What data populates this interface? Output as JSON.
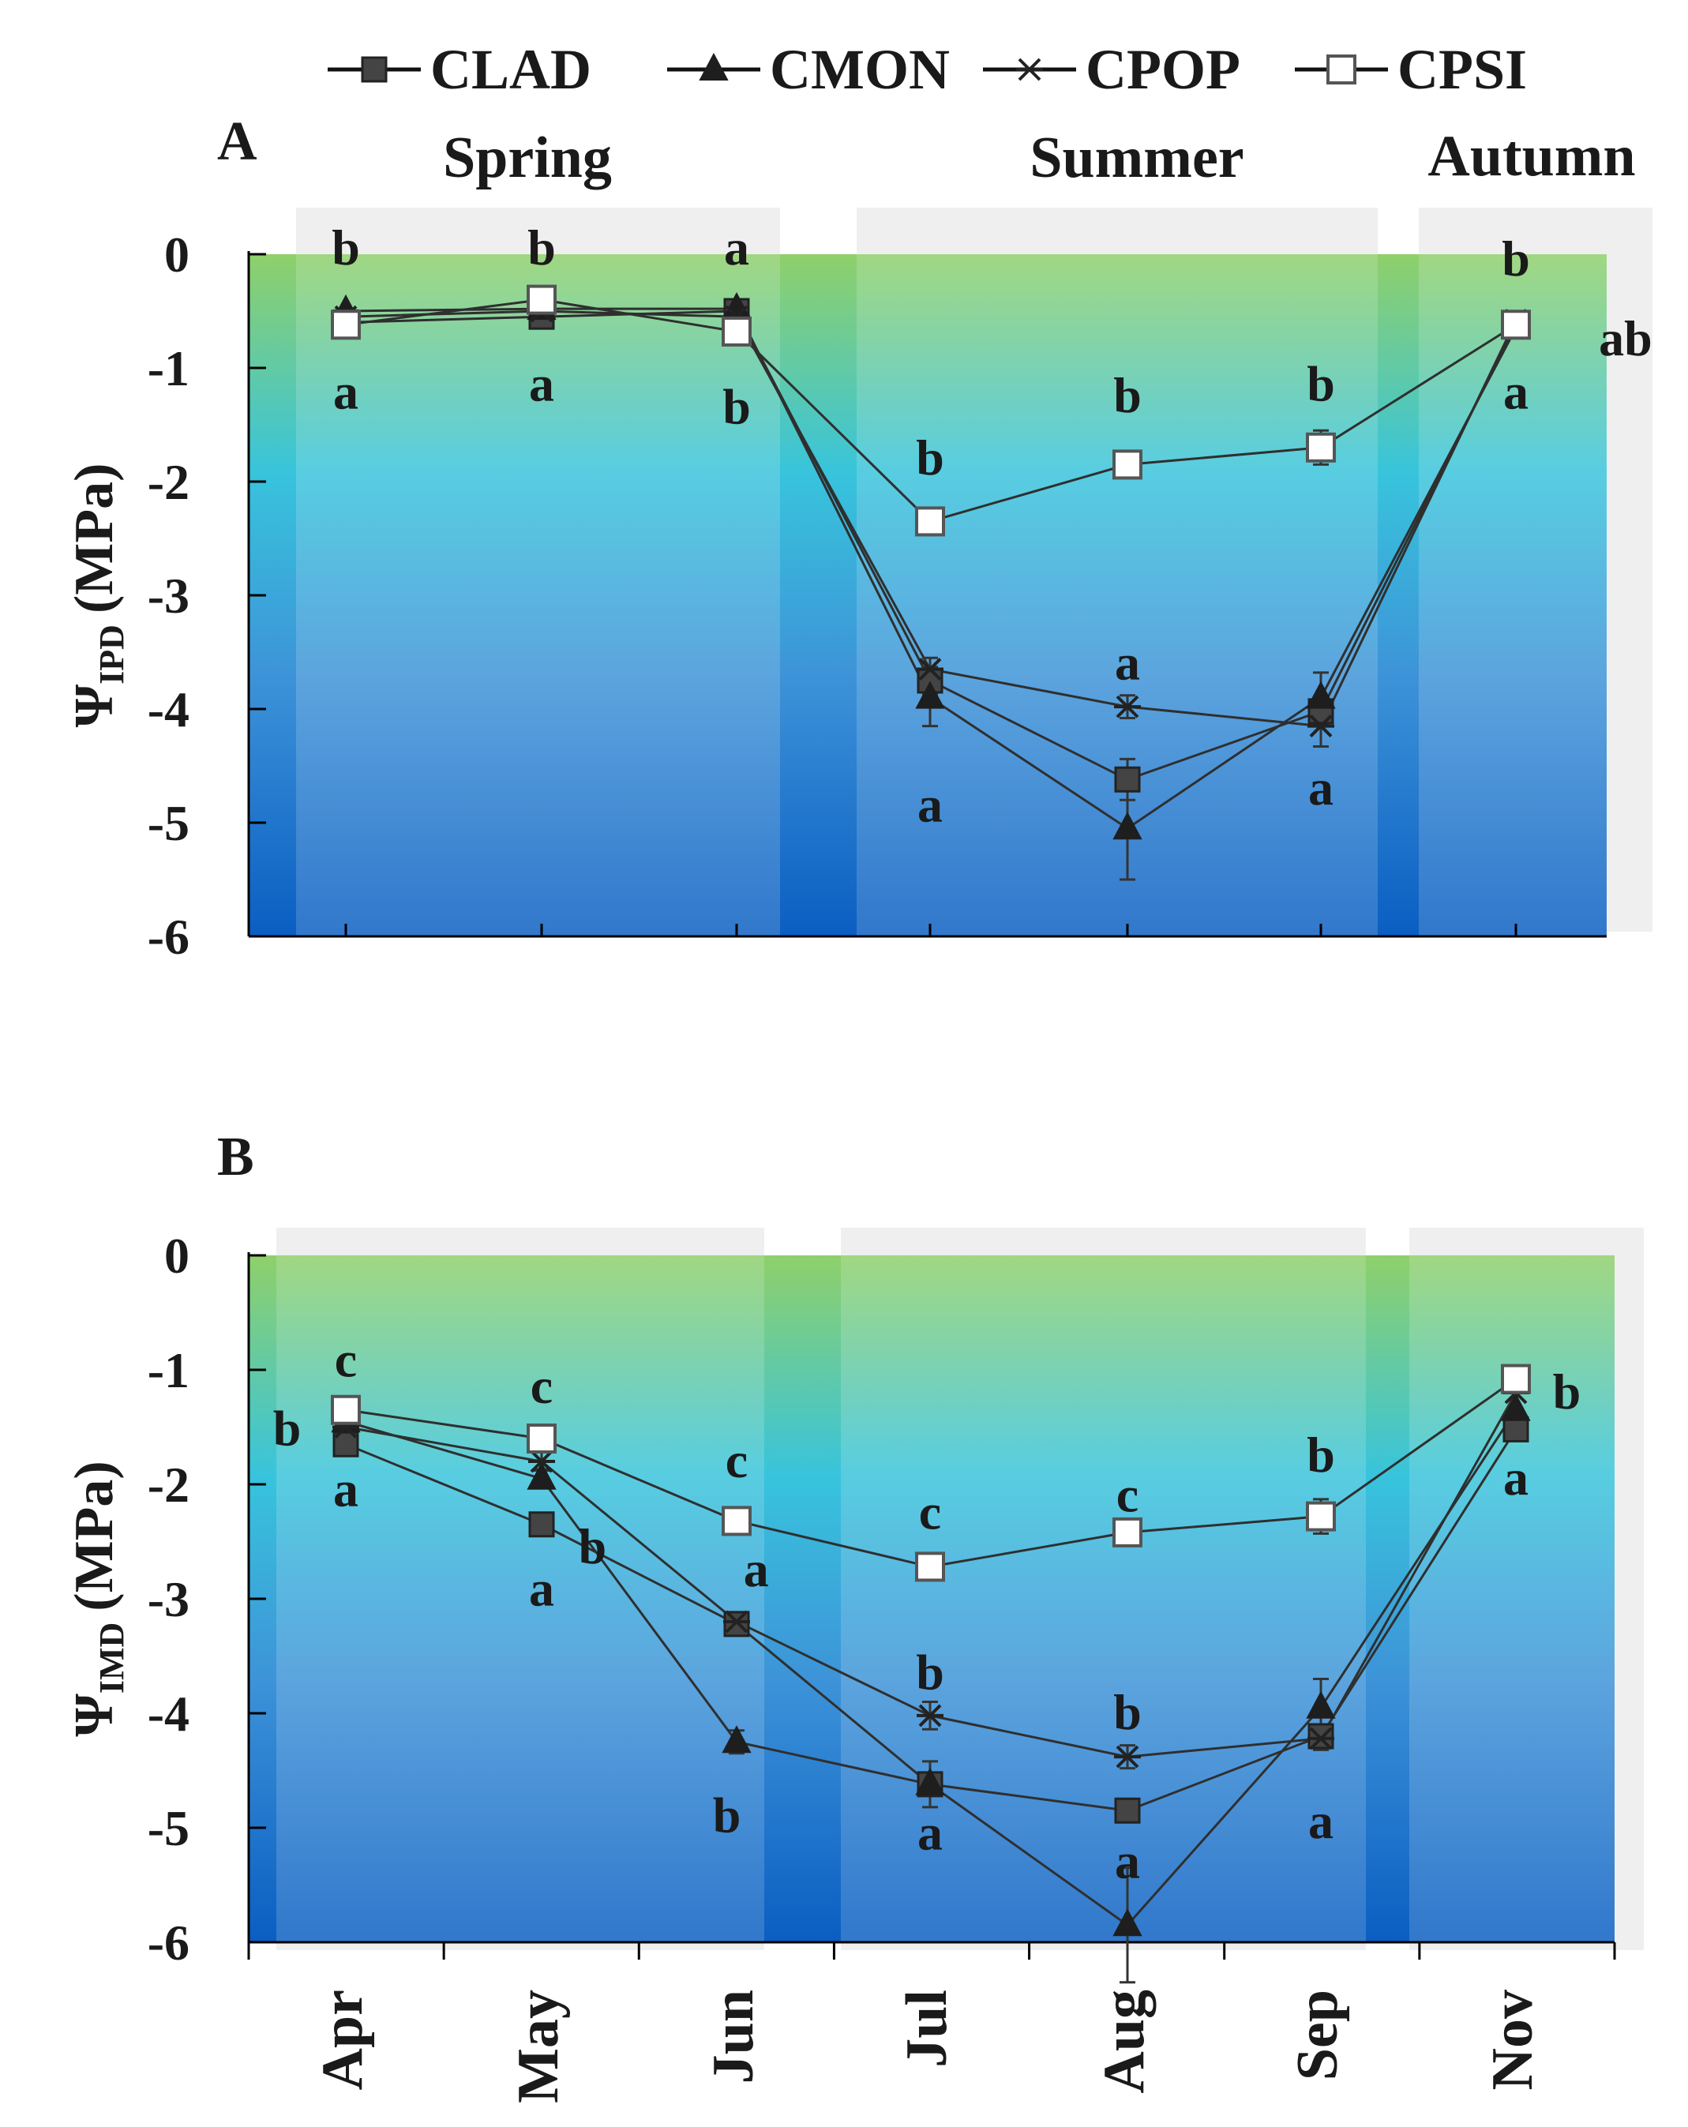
{
  "legend": {
    "position": "top",
    "entries": [
      {
        "name": "CLAD",
        "marker": "square-filled"
      },
      {
        "name": "CMON",
        "marker": "triangle-filled"
      },
      {
        "name": "CPOP",
        "marker": "asterisk"
      },
      {
        "name": "CPSI",
        "marker": "square-open"
      }
    ]
  },
  "colors": {
    "line": "#2f2f2f",
    "marker_fill": "#444444",
    "marker_open": "#ffffff",
    "season_shade": "#efefef",
    "gradient_top": "#8fd06a",
    "gradient_mid": "#38c4dc",
    "gradient_bottom": "#0a5ec2",
    "axis": "#000000"
  },
  "season_labels": [
    "Spring",
    "Summer",
    "Autumn"
  ],
  "chart_data": [
    {
      "type": "line",
      "panel_label": "A",
      "ylabel": "ΨIPD (MPa)",
      "ylabel_main": "Ψ",
      "ylabel_sub": "IPD",
      "ylabel_unit": "(MPa)",
      "ylim": [
        -6,
        0
      ],
      "yticks": [
        0,
        -1,
        -2,
        -3,
        -4,
        -5,
        -6
      ],
      "x": [
        "Apr",
        "May",
        "Jun",
        "Jul",
        "Aug",
        "Sep",
        "Nov"
      ],
      "grid": false,
      "series": [
        {
          "name": "CLAD",
          "values": [
            -0.6,
            -0.55,
            -0.5,
            -3.75,
            -4.62,
            -4.02,
            -0.62
          ],
          "err": [
            0.05,
            0.05,
            0.05,
            0.12,
            0.18,
            0.12,
            0.05
          ]
        },
        {
          "name": "CMON",
          "values": [
            -0.5,
            -0.48,
            -0.48,
            -3.9,
            -5.05,
            -3.9,
            -0.65
          ],
          "err": [
            0.05,
            0.05,
            0.05,
            0.25,
            0.45,
            0.22,
            0.05
          ]
        },
        {
          "name": "CPOP",
          "values": [
            -0.55,
            -0.5,
            -0.55,
            -3.65,
            -3.98,
            -4.15,
            -0.58
          ],
          "err": [
            0.05,
            0.05,
            0.05,
            0.1,
            0.1,
            0.18,
            0.05
          ]
        },
        {
          "name": "CPSI",
          "values": [
            -0.62,
            -0.4,
            -0.68,
            -2.35,
            -1.85,
            -1.7,
            -0.62
          ],
          "err": [
            0.05,
            0.05,
            0.05,
            0.12,
            0.08,
            0.15,
            0.05
          ]
        }
      ],
      "annotations": [
        {
          "text": "b",
          "month": "Apr",
          "y": 0.05
        },
        {
          "text": "a",
          "month": "Apr",
          "y": -1.22
        },
        {
          "text": "b",
          "month": "May",
          "y": 0.05
        },
        {
          "text": "a",
          "month": "May",
          "y": -1.15
        },
        {
          "text": "a",
          "month": "Jun",
          "y": 0.05
        },
        {
          "text": "b",
          "month": "Jun",
          "y": -1.35
        },
        {
          "text": "b",
          "month": "Jul",
          "y": -1.8
        },
        {
          "text": "a",
          "month": "Jul",
          "y": -4.85
        },
        {
          "text": "b",
          "month": "Aug",
          "y": -1.25
        },
        {
          "text": "a",
          "month": "Aug",
          "y": -3.6
        },
        {
          "text": "b",
          "month": "Sep",
          "y": -1.15
        },
        {
          "text": "a",
          "month": "Sep",
          "y": -4.7
        },
        {
          "text": "b",
          "month": "Nov",
          "y": -0.05
        },
        {
          "text": "a",
          "month": "Nov",
          "y": -1.22
        },
        {
          "text": "ab",
          "month": "Nov",
          "y": -0.75,
          "dx": 0.56
        }
      ]
    },
    {
      "type": "line",
      "panel_label": "B",
      "ylabel": "ΨIMD (MPa)",
      "ylabel_main": "Ψ",
      "ylabel_sub": "IMD",
      "ylabel_unit": "(MPa)",
      "ylim": [
        -6,
        0
      ],
      "yticks": [
        0,
        -1,
        -2,
        -3,
        -4,
        -5,
        -6
      ],
      "x": [
        "Apr",
        "May",
        "Jun",
        "Jul",
        "Aug",
        "Sep",
        "Nov"
      ],
      "grid": false,
      "series": [
        {
          "name": "CLAD",
          "values": [
            -1.65,
            -2.35,
            -3.22,
            -4.62,
            -4.85,
            -4.2,
            -1.52
          ],
          "err": [
            0.05,
            0.08,
            0.08,
            0.1,
            0.1,
            0.1,
            0.05
          ]
        },
        {
          "name": "CMON",
          "values": [
            -1.45,
            -1.95,
            -4.25,
            -4.62,
            -5.85,
            -3.95,
            -1.35
          ],
          "err": [
            0.05,
            0.08,
            0.1,
            0.2,
            0.5,
            0.25,
            0.05
          ]
        },
        {
          "name": "CPOP",
          "values": [
            -1.5,
            -1.8,
            -3.2,
            -4.02,
            -4.38,
            -4.22,
            -1.2
          ],
          "err": [
            0.05,
            0.08,
            0.08,
            0.12,
            0.1,
            0.1,
            0.05
          ]
        },
        {
          "name": "CPSI",
          "values": [
            -1.35,
            -1.6,
            -2.32,
            -2.72,
            -2.42,
            -2.28,
            -1.08
          ],
          "err": [
            0.05,
            0.05,
            0.05,
            0.05,
            0.08,
            0.15,
            0.05
          ]
        }
      ],
      "annotations": [
        {
          "text": "c",
          "month": "Apr",
          "y": -0.92
        },
        {
          "text": "b",
          "month": "Apr",
          "y": -1.52,
          "dx": -0.3
        },
        {
          "text": "a",
          "month": "Apr",
          "y": -2.05
        },
        {
          "text": "c",
          "month": "May",
          "y": -1.15
        },
        {
          "text": "b",
          "month": "May",
          "y": -2.55,
          "dx": 0.26
        },
        {
          "text": "a",
          "month": "May",
          "y": -2.92
        },
        {
          "text": "c",
          "month": "Jun",
          "y": -1.8
        },
        {
          "text": "a",
          "month": "Jun",
          "y": -2.75,
          "dx": 0.1
        },
        {
          "text": "b",
          "month": "Jun",
          "y": -4.9,
          "dx": -0.05
        },
        {
          "text": "c",
          "month": "Jul",
          "y": -2.25
        },
        {
          "text": "b",
          "month": "Jul",
          "y": -3.65
        },
        {
          "text": "a",
          "month": "Jul",
          "y": -5.05
        },
        {
          "text": "c",
          "month": "Aug",
          "y": -2.1
        },
        {
          "text": "b",
          "month": "Aug",
          "y": -4.0
        },
        {
          "text": "a",
          "month": "Aug",
          "y": -5.3
        },
        {
          "text": "b",
          "month": "Sep",
          "y": -1.75
        },
        {
          "text": "a",
          "month": "Sep",
          "y": -4.95
        },
        {
          "text": "b",
          "month": "Nov",
          "y": -1.2,
          "dx": 0.26
        },
        {
          "text": "a",
          "month": "Nov",
          "y": -1.95
        }
      ]
    }
  ]
}
